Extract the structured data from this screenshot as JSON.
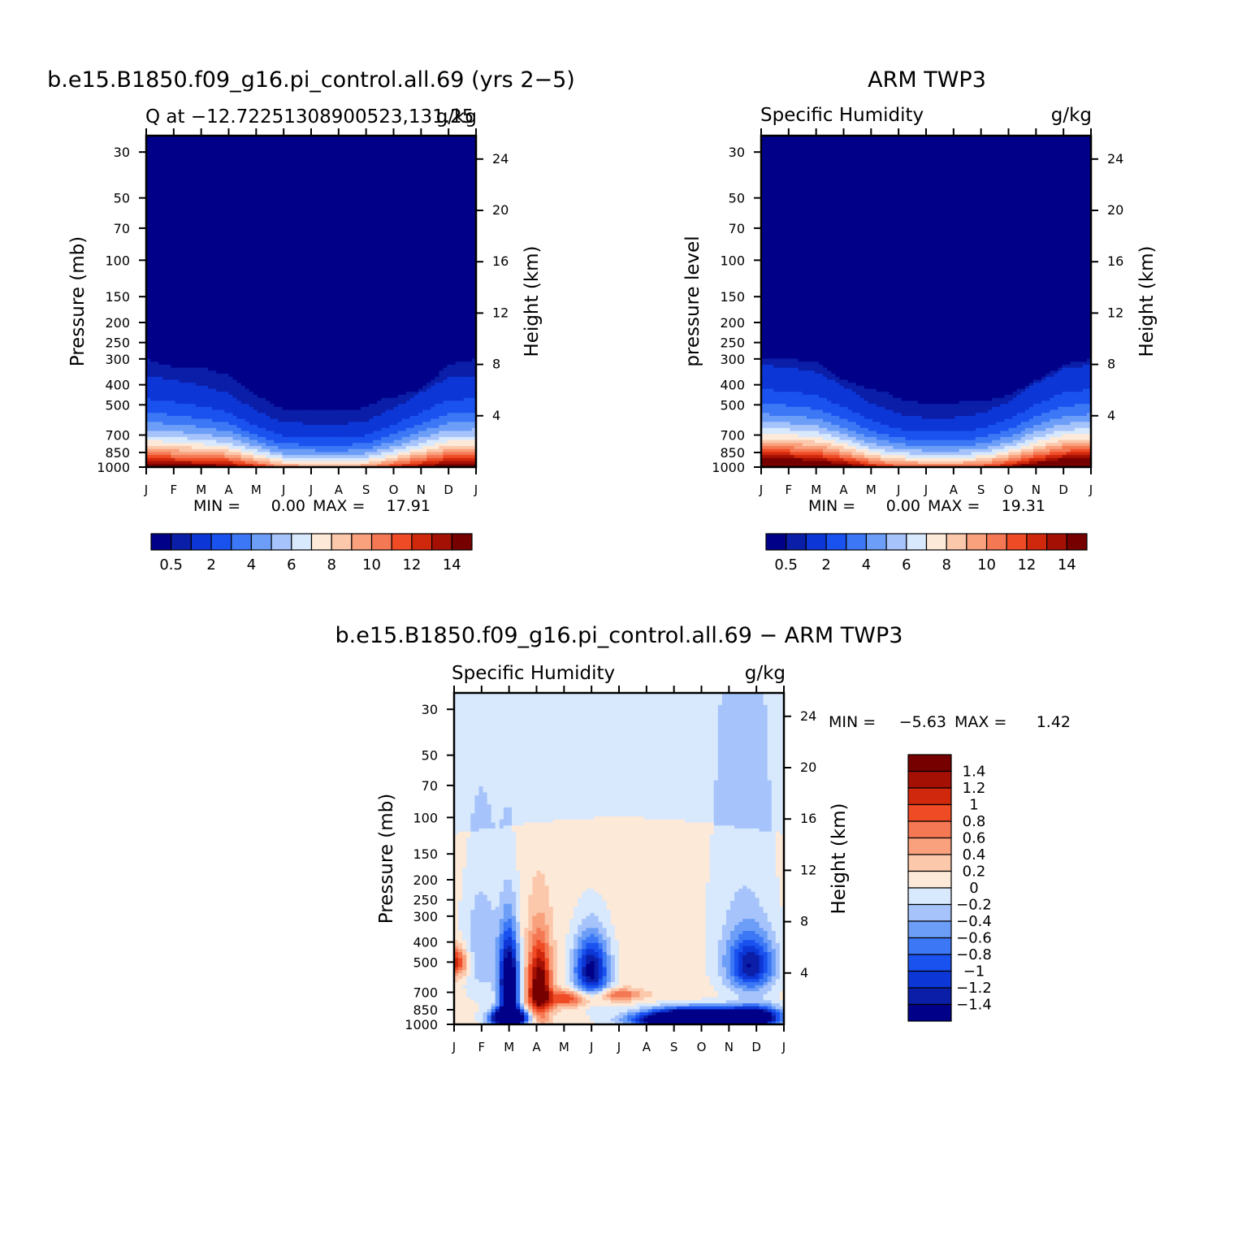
{
  "colors": {
    "full_scale": [
      "#000088",
      "#0a1ea8",
      "#0d36d6",
      "#1a52f0",
      "#3c78f5",
      "#6c9ef8",
      "#a6c4fb",
      "#d8e8fd",
      "#fde9d8",
      "#fcc8ac",
      "#f9a07c",
      "#f57854",
      "#ef4c26",
      "#d0280c",
      "#a41004",
      "#760000"
    ],
    "diff_scale": [
      "#000088",
      "#0a1ea8",
      "#0d36d6",
      "#1a52f0",
      "#3c78f5",
      "#6c9ef8",
      "#a6c4fb",
      "#d8e8fd",
      "#fde9d8",
      "#fcc8ac",
      "#f9a07c",
      "#f57854",
      "#ef4c26",
      "#d0280c",
      "#a41004",
      "#760000"
    ]
  },
  "chart_data": [
    {
      "id": "model",
      "type": "heatmap",
      "title": "b.e15.B1850.f09_g16.pi_control.all.69 (yrs 2−5)",
      "left_label": "Q at −12.72251308900523,131.25",
      "right_label": "g/kg",
      "ylabel": "Pressure (mb)",
      "y2label": "Height (km)",
      "months": [
        "J",
        "F",
        "M",
        "A",
        "M",
        "J",
        "J",
        "A",
        "S",
        "O",
        "N",
        "D",
        "J"
      ],
      "pressure_ticks": [
        30,
        50,
        70,
        100,
        150,
        200,
        250,
        300,
        400,
        500,
        700,
        850,
        1000
      ],
      "height_ticks": [
        4,
        8,
        12,
        16,
        20,
        24
      ],
      "stats": {
        "min_label": "MIN =",
        "min": "0.00",
        "max_label": "MAX =",
        "max": "17.91"
      },
      "colorbar_labels": [
        "0.5",
        "2",
        "4",
        "6",
        "8",
        "10",
        "12",
        "14"
      ],
      "levels": [
        0.5,
        1,
        2,
        3,
        4,
        5,
        6,
        7,
        8,
        9,
        10,
        11,
        12,
        13,
        14
      ],
      "field": {
        "monthly_q_surface": [
          15.5,
          15.2,
          15.0,
          14.5,
          12.5,
          10.0,
          9.5,
          9.2,
          9.8,
          12.0,
          14.0,
          15.5,
          15.5
        ],
        "monthly_scale_height_km": [
          2.6,
          2.5,
          2.35,
          2.15,
          1.75,
          1.5,
          1.5,
          1.5,
          1.55,
          1.85,
          2.2,
          2.55,
          2.6
        ],
        "monthly_top_pressure_mb": [
          300,
          330,
          330,
          360,
          430,
          480,
          470,
          470,
          470,
          460,
          420,
          320,
          300
        ]
      }
    },
    {
      "id": "obs",
      "type": "heatmap",
      "title": "ARM TWP3",
      "left_label": "Specific Humidity",
      "right_label": "g/kg",
      "ylabel": "pressure level",
      "y2label": "Height (km)",
      "months": [
        "J",
        "F",
        "M",
        "A",
        "M",
        "J",
        "J",
        "A",
        "S",
        "O",
        "N",
        "D",
        "J"
      ],
      "pressure_ticks": [
        30,
        50,
        70,
        100,
        150,
        200,
        250,
        300,
        400,
        500,
        700,
        850,
        1000
      ],
      "height_ticks": [
        4,
        8,
        12,
        16,
        20,
        24
      ],
      "stats": {
        "min_label": "MIN =",
        "min": "0.00",
        "max_label": "MAX =",
        "max": "19.31"
      },
      "colorbar_labels": [
        "0.5",
        "2",
        "4",
        "6",
        "8",
        "10",
        "12",
        "14"
      ],
      "levels": [
        0.5,
        1,
        2,
        3,
        4,
        5,
        6,
        7,
        8,
        9,
        10,
        11,
        12,
        13,
        14
      ],
      "field": {
        "monthly_q_surface": [
          18.0,
          17.8,
          17.2,
          15.5,
          13.0,
          11.5,
          11.0,
          11.0,
          11.5,
          13.5,
          16.0,
          17.8,
          18.0
        ],
        "monthly_scale_height_km": [
          2.75,
          2.7,
          2.6,
          2.3,
          1.95,
          1.7,
          1.6,
          1.6,
          1.7,
          1.95,
          2.35,
          2.65,
          2.75
        ],
        "monthly_top_pressure_mb": [
          300,
          300,
          310,
          380,
          420,
          450,
          460,
          480,
          480,
          450,
          380,
          320,
          300
        ]
      }
    },
    {
      "id": "diff",
      "type": "heatmap",
      "title": "b.e15.B1850.f09_g16.pi_control.all.69 − ARM TWP3",
      "left_label": "Specific Humidity",
      "right_label": "g/kg",
      "ylabel": "Pressure (mb)",
      "y2label": "Height (km)",
      "months": [
        "J",
        "F",
        "M",
        "A",
        "M",
        "J",
        "J",
        "A",
        "S",
        "O",
        "N",
        "D",
        "J"
      ],
      "pressure_ticks": [
        30,
        50,
        70,
        100,
        150,
        200,
        250,
        300,
        400,
        500,
        700,
        850,
        1000
      ],
      "height_ticks": [
        4,
        8,
        12,
        16,
        20,
        24
      ],
      "stats": {
        "min_label": "MIN =",
        "min": "−5.63",
        "max_label": "MAX =",
        "max": "1.42"
      },
      "colorbar_labels": [
        "1.4",
        "1.2",
        "1",
        "0.8",
        "0.6",
        "0.4",
        "0.2",
        "0",
        "−0.2",
        "−0.4",
        "−0.6",
        "−0.8",
        "−1",
        "−1.2",
        "−1.4"
      ],
      "levels": [
        -1.4,
        -1.2,
        -1.0,
        -0.8,
        -0.6,
        -0.4,
        -0.2,
        0,
        0.2,
        0.4,
        0.6,
        0.8,
        1.0,
        1.2,
        1.4
      ],
      "field": {
        "anomalies": [
          {
            "month": 0.0,
            "p": 500,
            "amp": 1.1,
            "sm": 0.35,
            "sp": 60
          },
          {
            "month": 2.0,
            "p": 650,
            "amp": -2.2,
            "sm": 0.25,
            "sp": 220
          },
          {
            "month": 2.0,
            "p": 930,
            "amp": -3.0,
            "sm": 0.45,
            "sp": 60
          },
          {
            "month": 3.1,
            "p": 650,
            "amp": 1.6,
            "sm": 0.3,
            "sp": 200
          },
          {
            "month": 4.2,
            "p": 750,
            "amp": 0.9,
            "sm": 0.7,
            "sp": 50
          },
          {
            "month": 5.0,
            "p": 550,
            "amp": -1.6,
            "sm": 0.45,
            "sp": 140
          },
          {
            "month": 6.0,
            "p": 720,
            "amp": 0.7,
            "sm": 0.6,
            "sp": 35
          },
          {
            "month": 9.0,
            "p": 950,
            "amp": -4.5,
            "sm": 1.4,
            "sp": 70
          },
          {
            "month": 10.8,
            "p": 520,
            "amp": -1.3,
            "sm": 0.6,
            "sp": 110
          },
          {
            "month": 11.0,
            "p": 900,
            "amp": -1.2,
            "sm": 0.6,
            "sp": 70
          },
          {
            "month": 1.0,
            "p": 430,
            "amp": -0.5,
            "sm": 0.5,
            "sp": 200
          },
          {
            "month": 10.5,
            "p": 320,
            "amp": -0.3,
            "sm": 0.9,
            "sp": 250
          }
        ]
      }
    }
  ]
}
